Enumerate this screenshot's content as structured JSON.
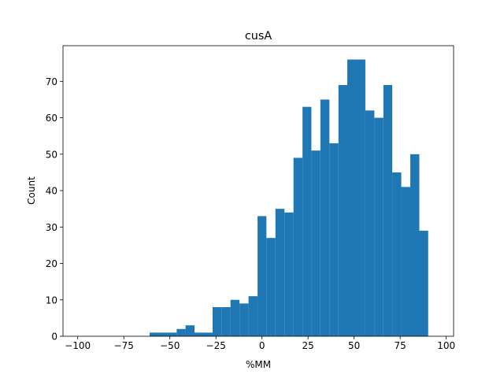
{
  "chart_data": {
    "type": "histogram",
    "title": "cusA",
    "xlabel": "%MM",
    "ylabel": "Count",
    "xlim": [
      -108,
      104
    ],
    "ylim": [
      0,
      79.8
    ],
    "xticks": [
      -100,
      -75,
      -50,
      -25,
      0,
      25,
      50,
      75,
      100
    ],
    "xtick_labels": [
      "−100",
      "−75",
      "−50",
      "−25",
      "0",
      "25",
      "50",
      "75",
      "100"
    ],
    "yticks": [
      0,
      10,
      20,
      30,
      40,
      50,
      60,
      70
    ],
    "ytick_labels": [
      "0",
      "10",
      "20",
      "30",
      "40",
      "50",
      "60",
      "70"
    ],
    "bar_color": "#1f77b4",
    "grid": false,
    "bins": [
      {
        "x0": -100,
        "x1": -95.1,
        "count": 0
      },
      {
        "x0": -95.1,
        "x1": -90.2,
        "count": 0
      },
      {
        "x0": -90.2,
        "x1": -85.4,
        "count": 0
      },
      {
        "x0": -85.4,
        "x1": -80.5,
        "count": 0
      },
      {
        "x0": -80.5,
        "x1": -75.6,
        "count": 0
      },
      {
        "x0": -75.6,
        "x1": -70.7,
        "count": 0
      },
      {
        "x0": -70.7,
        "x1": -65.9,
        "count": 0
      },
      {
        "x0": -65.9,
        "x1": -61.0,
        "count": 0
      },
      {
        "x0": -61.0,
        "x1": -56.1,
        "count": 1
      },
      {
        "x0": -56.1,
        "x1": -51.2,
        "count": 1
      },
      {
        "x0": -51.2,
        "x1": -46.3,
        "count": 1
      },
      {
        "x0": -46.3,
        "x1": -41.5,
        "count": 2
      },
      {
        "x0": -41.5,
        "x1": -36.6,
        "count": 3
      },
      {
        "x0": -36.6,
        "x1": -31.7,
        "count": 1
      },
      {
        "x0": -31.7,
        "x1": -26.8,
        "count": 1
      },
      {
        "x0": -26.8,
        "x1": -22.0,
        "count": 8
      },
      {
        "x0": -22.0,
        "x1": -17.1,
        "count": 8
      },
      {
        "x0": -17.1,
        "x1": -12.2,
        "count": 10
      },
      {
        "x0": -12.2,
        "x1": -7.3,
        "count": 9
      },
      {
        "x0": -7.3,
        "x1": -2.4,
        "count": 11
      },
      {
        "x0": -2.4,
        "x1": 2.4,
        "count": 33
      },
      {
        "x0": 2.4,
        "x1": 7.3,
        "count": 27
      },
      {
        "x0": 7.3,
        "x1": 12.2,
        "count": 35
      },
      {
        "x0": 12.2,
        "x1": 17.1,
        "count": 34
      },
      {
        "x0": 17.1,
        "x1": 22.0,
        "count": 49
      },
      {
        "x0": 22.0,
        "x1": 26.8,
        "count": 63
      },
      {
        "x0": 26.8,
        "x1": 31.7,
        "count": 51
      },
      {
        "x0": 31.7,
        "x1": 36.6,
        "count": 65
      },
      {
        "x0": 36.6,
        "x1": 41.5,
        "count": 53
      },
      {
        "x0": 41.5,
        "x1": 46.3,
        "count": 69
      },
      {
        "x0": 46.3,
        "x1": 51.2,
        "count": 76
      },
      {
        "x0": 51.2,
        "x1": 56.1,
        "count": 76
      },
      {
        "x0": 56.1,
        "x1": 61.0,
        "count": 62
      },
      {
        "x0": 61.0,
        "x1": 65.9,
        "count": 60
      },
      {
        "x0": 65.9,
        "x1": 70.7,
        "count": 69
      },
      {
        "x0": 70.7,
        "x1": 75.6,
        "count": 45
      },
      {
        "x0": 75.6,
        "x1": 80.5,
        "count": 41
      },
      {
        "x0": 80.5,
        "x1": 85.4,
        "count": 50
      },
      {
        "x0": 85.4,
        "x1": 90.2,
        "count": 29
      }
    ]
  }
}
